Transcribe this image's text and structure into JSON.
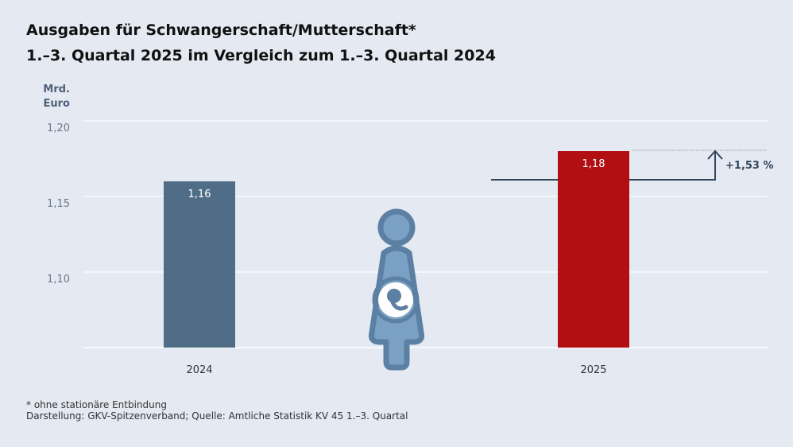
{
  "title_line1": "Ausgaben für Schwangerschaft/Mutterschaft*",
  "title_line2": "1.–3. Quartal 2025 im Vergleich zum 1.–3. Quartal 2024",
  "footnote": "* ohne stationäre Entbindung",
  "source": "Darstellung: GKV-Spitzenverband; Quelle: Amtliche Statistik KV 45 1.–3. Quartal",
  "chart_data": {
    "type": "bar",
    "ylabel_line1": "Mrd.",
    "ylabel_line2": "Euro",
    "categories": [
      "2024",
      "2025"
    ],
    "values": [
      1.16,
      1.18
    ],
    "value_labels": [
      "1,16",
      "1,18"
    ],
    "colors": [
      "#506d87",
      "#b30f12"
    ],
    "ylim": [
      1.05,
      1.2
    ],
    "yticks": [
      {
        "v": 1.2,
        "label": "1,20"
      },
      {
        "v": 1.15,
        "label": "1,15"
      },
      {
        "v": 1.1,
        "label": "1,10"
      }
    ],
    "grid": true,
    "annotation": "+1,53 %",
    "icon": "pregnant-woman-icon"
  }
}
